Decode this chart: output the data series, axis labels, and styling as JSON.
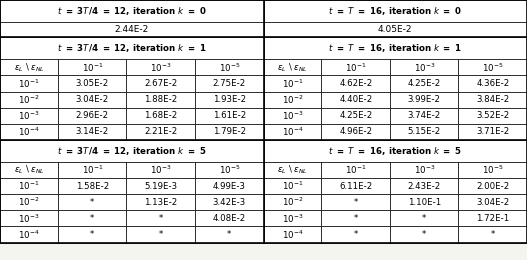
{
  "figsize": [
    5.27,
    2.6
  ],
  "dpi": 100,
  "left_header_k0": "t = 3T/4 = 12, iteration k = 0",
  "right_header_k0": "t = T = 16, iteration k = 0",
  "left_val_k0": "2.44E-2",
  "right_val_k0": "4.05E-2",
  "left_header_k1": "t = 3T/4 = 12, iteration k = 1",
  "right_header_k1": "t = T = 16, iteration k = 1",
  "left_header_k5": "t = 3T/4 = 12, iteration k = 5",
  "right_header_k5": "t = T = 16, iteration k = 5",
  "col_header": [
    "$\\varepsilon_L$ \\ $\\varepsilon_{NL}$",
    "$10^{-1}$",
    "$10^{-3}$",
    "$10^{-5}$"
  ],
  "row_labels": [
    "$10^{-1}$",
    "$10^{-2}$",
    "$10^{-3}$",
    "$10^{-4}$"
  ],
  "k1_left": [
    [
      "3.05E-2",
      "2.67E-2",
      "2.75E-2"
    ],
    [
      "3.04E-2",
      "1.88E-2",
      "1.93E-2"
    ],
    [
      "2.96E-2",
      "1.68E-2",
      "1.61E-2"
    ],
    [
      "3.14E-2",
      "2.21E-2",
      "1.79E-2"
    ]
  ],
  "k1_right": [
    [
      "4.62E-2",
      "4.25E-2",
      "4.36E-2"
    ],
    [
      "4.40E-2",
      "3.99E-2",
      "3.84E-2"
    ],
    [
      "4.25E-2",
      "3.74E-2",
      "3.52E-2"
    ],
    [
      "4.96E-2",
      "5.15E-2",
      "3.71E-2"
    ]
  ],
  "k5_left": [
    [
      "1.58E-2",
      "5.19E-3",
      "4.99E-3"
    ],
    [
      "*",
      "1.13E-2",
      "3.42E-3"
    ],
    [
      "*",
      "*",
      "4.08E-2"
    ],
    [
      "*",
      "*",
      "*"
    ]
  ],
  "k5_right": [
    [
      "6.11E-2",
      "2.43E-2",
      "2.00E-2"
    ],
    [
      "*",
      "1.10E-1",
      "3.04E-2"
    ],
    [
      "*",
      "*",
      "1.72E-1"
    ],
    [
      "*",
      "*",
      "*"
    ]
  ]
}
